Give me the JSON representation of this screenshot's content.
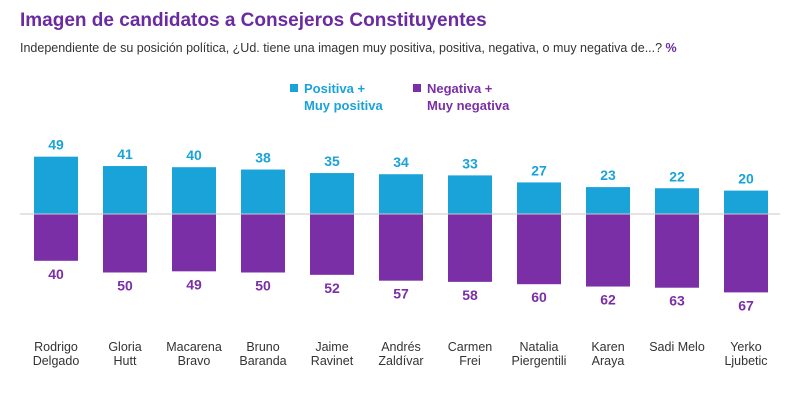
{
  "header": {
    "title": "Imagen de candidatos a Consejeros Constituyentes",
    "subtitle": "Independiente de su posición política, ¿Ud. tiene una imagen muy positiva, positiva, negativa, o muy negativa de...?",
    "unit": "%"
  },
  "colors": {
    "positive": "#1aa3d9",
    "negative": "#7b2fa6",
    "title": "#6a2aa0",
    "baseline": "#c9c9c9"
  },
  "chart_data": {
    "type": "bar",
    "categories": [
      "Rodrigo\nDelgado",
      "Gloria\nHutt",
      "Macarena\nBravo",
      "Bruno\nBaranda",
      "Jaime\nRavinet",
      "Andrés\nZaldívar",
      "Carmen\nFrei",
      "Natalia\nPiergentili",
      "Karen\nAraya",
      "Sadi Melo",
      "Yerko\nLjubetic"
    ],
    "series": [
      {
        "name": "Positiva +\nMuy positiva",
        "values": [
          49,
          41,
          40,
          38,
          35,
          34,
          33,
          27,
          23,
          22,
          20
        ]
      },
      {
        "name": "Negativa +\nMuy negativa",
        "values": [
          40,
          50,
          49,
          50,
          52,
          57,
          58,
          60,
          62,
          63,
          67
        ]
      }
    ],
    "orientation": "diverging-vertical",
    "legend": "top"
  }
}
